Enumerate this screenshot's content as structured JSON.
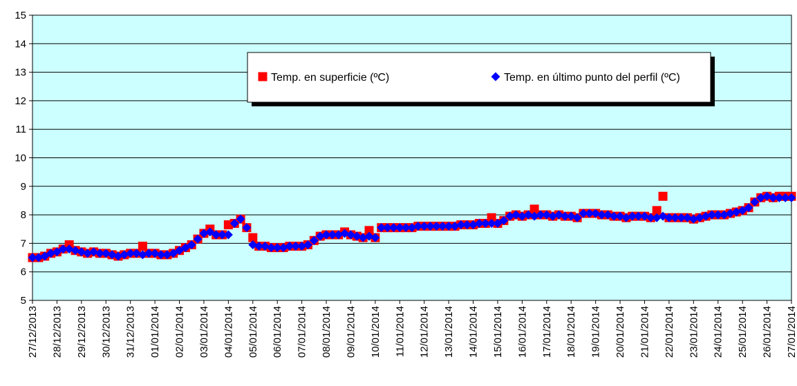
{
  "chart_data": {
    "type": "line",
    "xticks": [
      "27/12/2013",
      "28/12/2013",
      "29/12/2013",
      "30/12/2013",
      "31/12/2013",
      "01/01/2014",
      "02/01/2014",
      "03/01/2014",
      "04/01/2014",
      "05/01/2014",
      "06/01/2014",
      "07/01/2014",
      "08/01/2014",
      "09/01/2014",
      "10/01/2014",
      "11/01/2014",
      "12/01/2014",
      "13/01/2014",
      "14/01/2014",
      "15/01/2014",
      "16/01/2014",
      "17/01/2014",
      "18/01/2014",
      "19/01/2014",
      "20/01/2014",
      "21/01/2014",
      "22/01/2014",
      "23/01/2014",
      "24/01/2014",
      "25/01/2014",
      "26/01/2014",
      "27/01/2014"
    ],
    "ylim": [
      5,
      15
    ],
    "yticks": [
      5,
      6,
      7,
      8,
      9,
      10,
      11,
      12,
      13,
      14,
      15
    ],
    "grid": true,
    "series": [
      {
        "name": "Temp. en superficie (ºC)",
        "color": "#ff0000",
        "marker": "square",
        "values": [
          6.5,
          6.5,
          6.55,
          6.65,
          6.7,
          6.8,
          6.95,
          6.75,
          6.7,
          6.65,
          6.7,
          6.65,
          6.65,
          6.6,
          6.55,
          6.6,
          6.65,
          6.65,
          6.9,
          6.65,
          6.65,
          6.6,
          6.6,
          6.65,
          6.75,
          6.85,
          6.95,
          7.15,
          7.35,
          7.5,
          7.3,
          7.3,
          7.65,
          7.7,
          7.85,
          7.55,
          7.2,
          6.9,
          6.9,
          6.85,
          6.85,
          6.85,
          6.9,
          6.9,
          6.9,
          6.95,
          7.1,
          7.25,
          7.3,
          7.3,
          7.3,
          7.4,
          7.3,
          7.25,
          7.2,
          7.45,
          7.2,
          7.55,
          7.55,
          7.55,
          7.55,
          7.55,
          7.55,
          7.6,
          7.6,
          7.6,
          7.6,
          7.6,
          7.6,
          7.6,
          7.65,
          7.65,
          7.65,
          7.7,
          7.7,
          7.9,
          7.7,
          7.8,
          7.95,
          8.0,
          7.95,
          8.0,
          8.2,
          8.0,
          8.0,
          7.95,
          8.0,
          7.95,
          7.95,
          7.9,
          8.05,
          8.05,
          8.05,
          8.0,
          8.0,
          7.95,
          7.95,
          7.9,
          7.95,
          7.95,
          7.95,
          7.9,
          8.15,
          8.65,
          7.9,
          7.9,
          7.9,
          7.9,
          7.85,
          7.9,
          7.95,
          8.0,
          8.0,
          8.0,
          8.05,
          8.1,
          8.15,
          8.25,
          8.45,
          8.6,
          8.65,
          8.6,
          8.65,
          8.65,
          8.65
        ]
      },
      {
        "name": "Temp. en último punto del perfil (ºC)",
        "color": "#0000ff",
        "marker": "diamond",
        "values": [
          6.5,
          6.5,
          6.55,
          6.65,
          6.7,
          6.8,
          6.8,
          6.75,
          6.7,
          6.65,
          6.7,
          6.65,
          6.65,
          6.6,
          6.55,
          6.6,
          6.65,
          6.65,
          6.6,
          6.65,
          6.65,
          6.6,
          6.6,
          6.65,
          6.75,
          6.85,
          6.95,
          7.15,
          7.35,
          7.4,
          7.3,
          7.3,
          7.3,
          7.7,
          7.85,
          7.55,
          6.95,
          6.9,
          6.9,
          6.85,
          6.85,
          6.85,
          6.9,
          6.9,
          6.9,
          6.95,
          7.1,
          7.25,
          7.3,
          7.3,
          7.3,
          7.35,
          7.3,
          7.25,
          7.2,
          7.25,
          7.2,
          7.55,
          7.55,
          7.55,
          7.55,
          7.55,
          7.55,
          7.6,
          7.6,
          7.6,
          7.6,
          7.6,
          7.6,
          7.6,
          7.65,
          7.65,
          7.65,
          7.7,
          7.7,
          7.7,
          7.7,
          7.8,
          7.95,
          8.0,
          7.95,
          8.0,
          7.95,
          8.0,
          8.0,
          7.95,
          8.0,
          7.95,
          7.95,
          7.9,
          8.05,
          8.05,
          8.05,
          8.0,
          8.0,
          7.95,
          7.95,
          7.9,
          7.95,
          7.95,
          7.95,
          7.9,
          7.9,
          7.95,
          7.9,
          7.9,
          7.9,
          7.9,
          7.85,
          7.9,
          7.95,
          8.0,
          8.0,
          8.0,
          8.05,
          8.1,
          8.15,
          8.25,
          8.45,
          8.6,
          8.65,
          8.6,
          8.6,
          8.6,
          8.6
        ]
      }
    ]
  }
}
